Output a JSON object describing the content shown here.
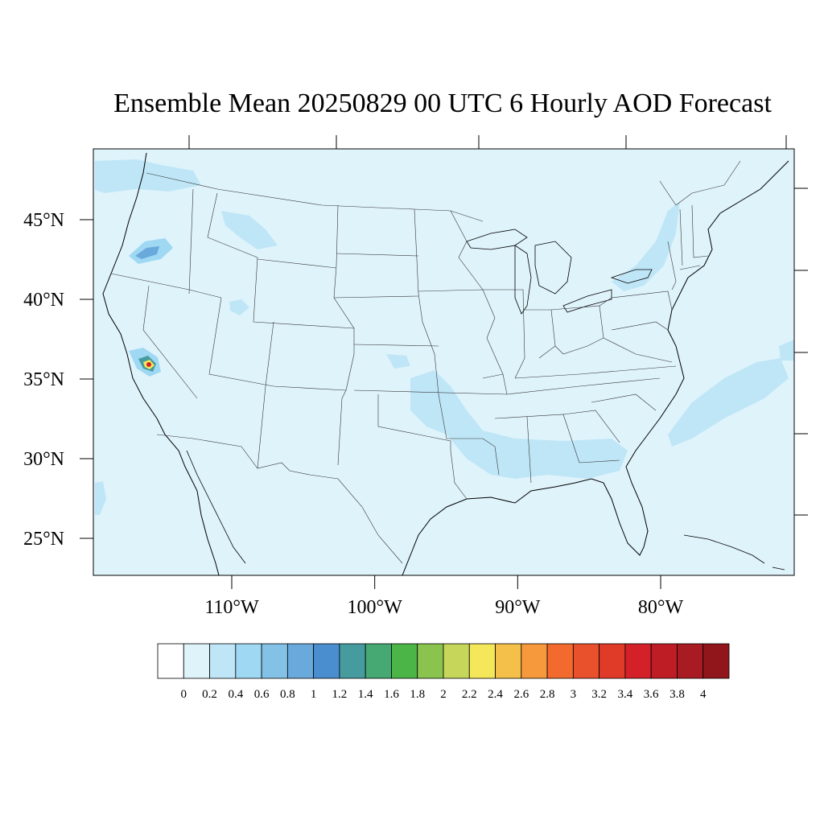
{
  "title": "Ensemble Mean 20250829 00 UTC 6 Hourly AOD Forecast",
  "lat_ticks": [
    {
      "value": 45,
      "label": "45°N"
    },
    {
      "value": 40,
      "label": "40°N"
    },
    {
      "value": 35,
      "label": "35°N"
    },
    {
      "value": 30,
      "label": "30°N"
    },
    {
      "value": 25,
      "label": "25°N"
    }
  ],
  "lon_ticks": [
    {
      "value": -110,
      "label": "110°W"
    },
    {
      "value": -100,
      "label": "100°W"
    },
    {
      "value": -90,
      "label": "90°W"
    },
    {
      "value": -80,
      "label": "80°W"
    }
  ],
  "colorbar": {
    "labels": [
      "0",
      "0.2",
      "0.4",
      "0.6",
      "0.8",
      "1",
      "1.2",
      "1.4",
      "1.6",
      "1.8",
      "2",
      "2.2",
      "2.4",
      "2.6",
      "2.8",
      "3",
      "3.2",
      "3.4",
      "3.6",
      "3.8",
      "4"
    ],
    "colors": [
      "#ffffff",
      "#dff3fb",
      "#bfe6f7",
      "#9fd8f3",
      "#84c1e6",
      "#69a9dc",
      "#4a8ecf",
      "#469b9f",
      "#46a873",
      "#4bb548",
      "#8ac44e",
      "#c5d65a",
      "#f5e75a",
      "#f5c04a",
      "#f5993c",
      "#f26a2e",
      "#e9502c",
      "#e03a28",
      "#d42028",
      "#be1d26",
      "#a81b22",
      "#91161b"
    ]
  },
  "map_background_color": "#dff3fb",
  "aod_features": [
    {
      "name": "oregon-smoke",
      "level": "0.4-1.2"
    },
    {
      "name": "california-fire-hotspot",
      "level": ">4"
    },
    {
      "name": "gulf-coast-haze",
      "level": "0.2-0.4"
    },
    {
      "name": "atlantic-offshore-haze",
      "level": "0.2-0.4"
    }
  ]
}
